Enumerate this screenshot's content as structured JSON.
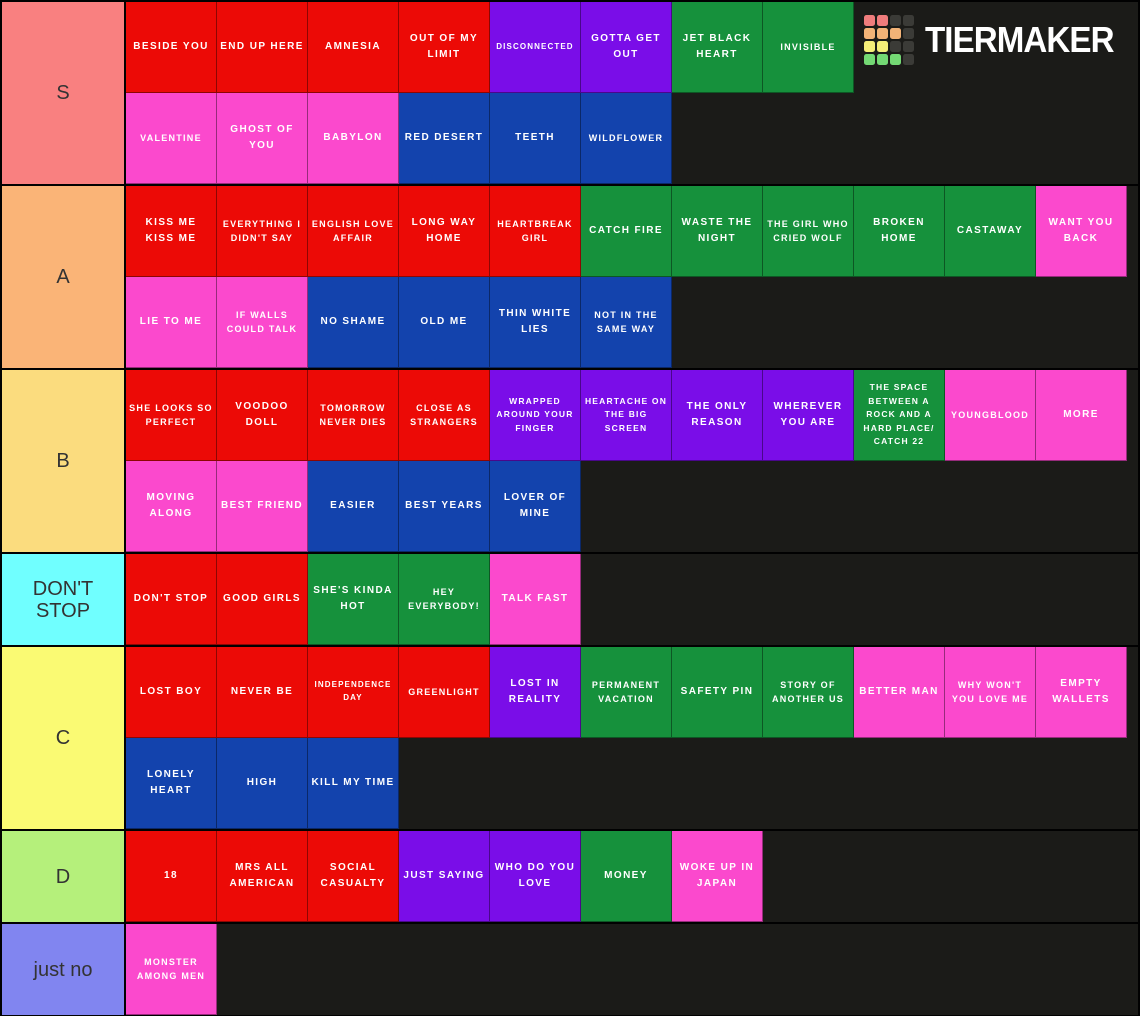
{
  "logo": {
    "text": "TIERMAKER",
    "grid": [
      [
        "#ef7c7c",
        "#ef7c7c",
        "#3b3b37",
        "#3b3b37"
      ],
      [
        "#f3b377",
        "#f3b377",
        "#f3b377",
        "#3b3b37"
      ],
      [
        "#f5ee78",
        "#f5ee78",
        "#3b3b37",
        "#3b3b37"
      ],
      [
        "#74d974",
        "#74d974",
        "#74d974",
        "#3b3b37"
      ]
    ]
  },
  "palette": {
    "red": "#ec0a06",
    "pink": "#fb49cd",
    "purple": "#7a0de8",
    "green": "#16913c",
    "blue": "#1343ad"
  },
  "tiers": [
    {
      "id": "s",
      "label": "S",
      "label_color": "#f98080",
      "lines": [
        [
          {
            "t": "BESIDE YOU",
            "c": "red"
          },
          {
            "t": "END UP HERE",
            "c": "red"
          },
          {
            "t": "AMNESIA",
            "c": "red"
          },
          {
            "t": "OUT OF MY LIMIT",
            "c": "red"
          },
          {
            "t": "DISCONNECTED",
            "c": "purple"
          },
          {
            "t": "GOTTA GET OUT",
            "c": "purple"
          },
          {
            "t": "JET BLACK HEART",
            "c": "green"
          },
          {
            "t": "INVISIBLE",
            "c": "green"
          }
        ],
        [
          {
            "t": "VALENTINE",
            "c": "pink"
          },
          {
            "t": "GHOST OF YOU",
            "c": "pink"
          },
          {
            "t": "BABYLON",
            "c": "pink"
          },
          {
            "t": "RED DESERT",
            "c": "blue"
          },
          {
            "t": "TEETH",
            "c": "blue"
          },
          {
            "t": "WILDFLOWER",
            "c": "blue"
          }
        ]
      ]
    },
    {
      "id": "a",
      "label": "A",
      "label_color": "#fab477",
      "lines": [
        [
          {
            "t": "KISS ME KISS ME",
            "c": "red"
          },
          {
            "t": "EVERYTHING I DIDN'T SAY",
            "c": "red"
          },
          {
            "t": "ENGLISH LOVE AFFAIR",
            "c": "red"
          },
          {
            "t": "LONG WAY HOME",
            "c": "red"
          },
          {
            "t": "HEARTBREAK GIRL",
            "c": "red"
          },
          {
            "t": "CATCH FIRE",
            "c": "green"
          },
          {
            "t": "WASTE THE NIGHT",
            "c": "green"
          },
          {
            "t": "THE GIRL WHO CRIED WOLF",
            "c": "green"
          },
          {
            "t": "BROKEN HOME",
            "c": "green"
          },
          {
            "t": "CASTAWAY",
            "c": "green"
          },
          {
            "t": "WANT YOU BACK",
            "c": "pink"
          }
        ],
        [
          {
            "t": "LIE TO ME",
            "c": "pink"
          },
          {
            "t": "IF WALLS COULD TALK",
            "c": "pink"
          },
          {
            "t": "NO SHAME",
            "c": "blue"
          },
          {
            "t": "OLD ME",
            "c": "blue"
          },
          {
            "t": "THIN WHITE LIES",
            "c": "blue"
          },
          {
            "t": "NOT IN THE SAME WAY",
            "c": "blue"
          }
        ]
      ]
    },
    {
      "id": "b",
      "label": "B",
      "label_color": "#fbdc7e",
      "lines": [
        [
          {
            "t": "SHE LOOKS SO PERFECT",
            "c": "red"
          },
          {
            "t": "VOODOO DOLL",
            "c": "red"
          },
          {
            "t": "TOMORROW NEVER DIES",
            "c": "red"
          },
          {
            "t": "CLOSE AS STRANGERS",
            "c": "red"
          },
          {
            "t": "WRAPPED AROUND YOUR FINGER",
            "c": "purple"
          },
          {
            "t": "HEARTACHE ON THE BIG SCREEN",
            "c": "purple"
          },
          {
            "t": "THE ONLY REASON",
            "c": "purple"
          },
          {
            "t": "WHEREVER YOU ARE",
            "c": "purple"
          },
          {
            "t": "THE SPACE BETWEEN A ROCK AND A HARD PLACE/ CATCH 22",
            "c": "green"
          },
          {
            "t": "YOUNGBLOOD",
            "c": "pink"
          },
          {
            "t": "MORE",
            "c": "pink"
          }
        ],
        [
          {
            "t": "MOVING ALONG",
            "c": "pink"
          },
          {
            "t": "BEST FRIEND",
            "c": "pink"
          },
          {
            "t": "EASIER",
            "c": "blue"
          },
          {
            "t": "BEST YEARS",
            "c": "blue"
          },
          {
            "t": "LOVER OF MINE",
            "c": "blue"
          }
        ]
      ]
    },
    {
      "id": "dont-stop",
      "label": "DON'T STOP",
      "label_color": "#70ffff",
      "lines": [
        [
          {
            "t": "DON'T STOP",
            "c": "red"
          },
          {
            "t": "GOOD GIRLS",
            "c": "red"
          },
          {
            "t": "SHE'S KINDA HOT",
            "c": "green"
          },
          {
            "t": "HEY EVERYBODY!",
            "c": "green"
          },
          {
            "t": "TALK FAST",
            "c": "pink"
          }
        ]
      ]
    },
    {
      "id": "c",
      "label": "C",
      "label_color": "#fafa73",
      "lines": [
        [
          {
            "t": "LOST BOY",
            "c": "red"
          },
          {
            "t": "NEVER BE",
            "c": "red"
          },
          {
            "t": "INDEPENDENCE DAY",
            "c": "red"
          },
          {
            "t": "GREENLIGHT",
            "c": "red"
          },
          {
            "t": "LOST IN REALITY",
            "c": "purple"
          },
          {
            "t": "PERMANENT VACATION",
            "c": "green"
          },
          {
            "t": "SAFETY PIN",
            "c": "green"
          },
          {
            "t": "STORY OF ANOTHER US",
            "c": "green"
          },
          {
            "t": "BETTER MAN",
            "c": "pink"
          },
          {
            "t": "WHY WON'T YOU LOVE ME",
            "c": "pink"
          },
          {
            "t": "EMPTY WALLETS",
            "c": "pink"
          }
        ],
        [
          {
            "t": "LONELY HEART",
            "c": "blue"
          },
          {
            "t": "HIGH",
            "c": "blue"
          },
          {
            "t": "KILL MY TIME",
            "c": "blue"
          }
        ]
      ]
    },
    {
      "id": "d",
      "label": "D",
      "label_color": "#b5f07b",
      "lines": [
        [
          {
            "t": "18",
            "c": "red"
          },
          {
            "t": "MRS ALL AMERICAN",
            "c": "red"
          },
          {
            "t": "SOCIAL CASUALTY",
            "c": "red"
          },
          {
            "t": "JUST SAYING",
            "c": "purple"
          },
          {
            "t": "WHO DO YOU LOVE",
            "c": "purple"
          },
          {
            "t": "MONEY",
            "c": "green"
          },
          {
            "t": "WOKE UP IN JAPAN",
            "c": "pink"
          }
        ]
      ]
    },
    {
      "id": "just-no",
      "label": "just no",
      "label_color": "#8185f0",
      "lines": [
        [
          {
            "t": "MONSTER AMONG MEN",
            "c": "pink"
          }
        ]
      ]
    }
  ]
}
